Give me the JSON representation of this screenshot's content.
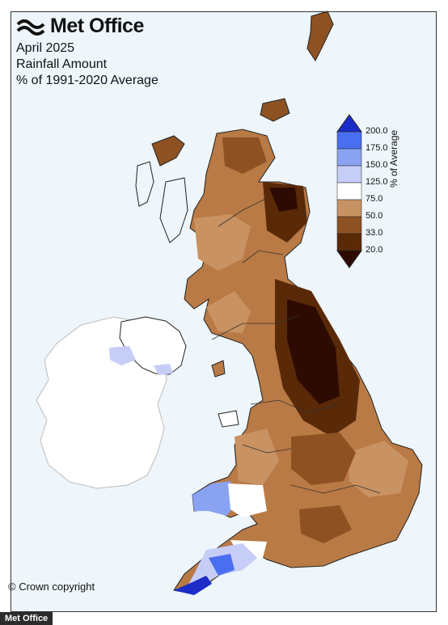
{
  "brand": {
    "name": "Met Office"
  },
  "titles": {
    "line1": "April 2025",
    "line2": "Rainfall Amount",
    "line3": "% of 1991-2020 Average"
  },
  "legend": {
    "title": "% of Average",
    "labels": [
      "200.0",
      "175.0",
      "150.0",
      "125.0",
      "75.0",
      "50.0",
      "33.0",
      "20.0"
    ],
    "colors": [
      "#1c2cc9",
      "#4a6ef0",
      "#8aa2f2",
      "#c6cdf7",
      "#ffffff",
      "#c99262",
      "#8e5222",
      "#5a2a08",
      "#2e0b02"
    ]
  },
  "footer": {
    "copyright": "© Crown copyright",
    "credit": "Met Office"
  }
}
